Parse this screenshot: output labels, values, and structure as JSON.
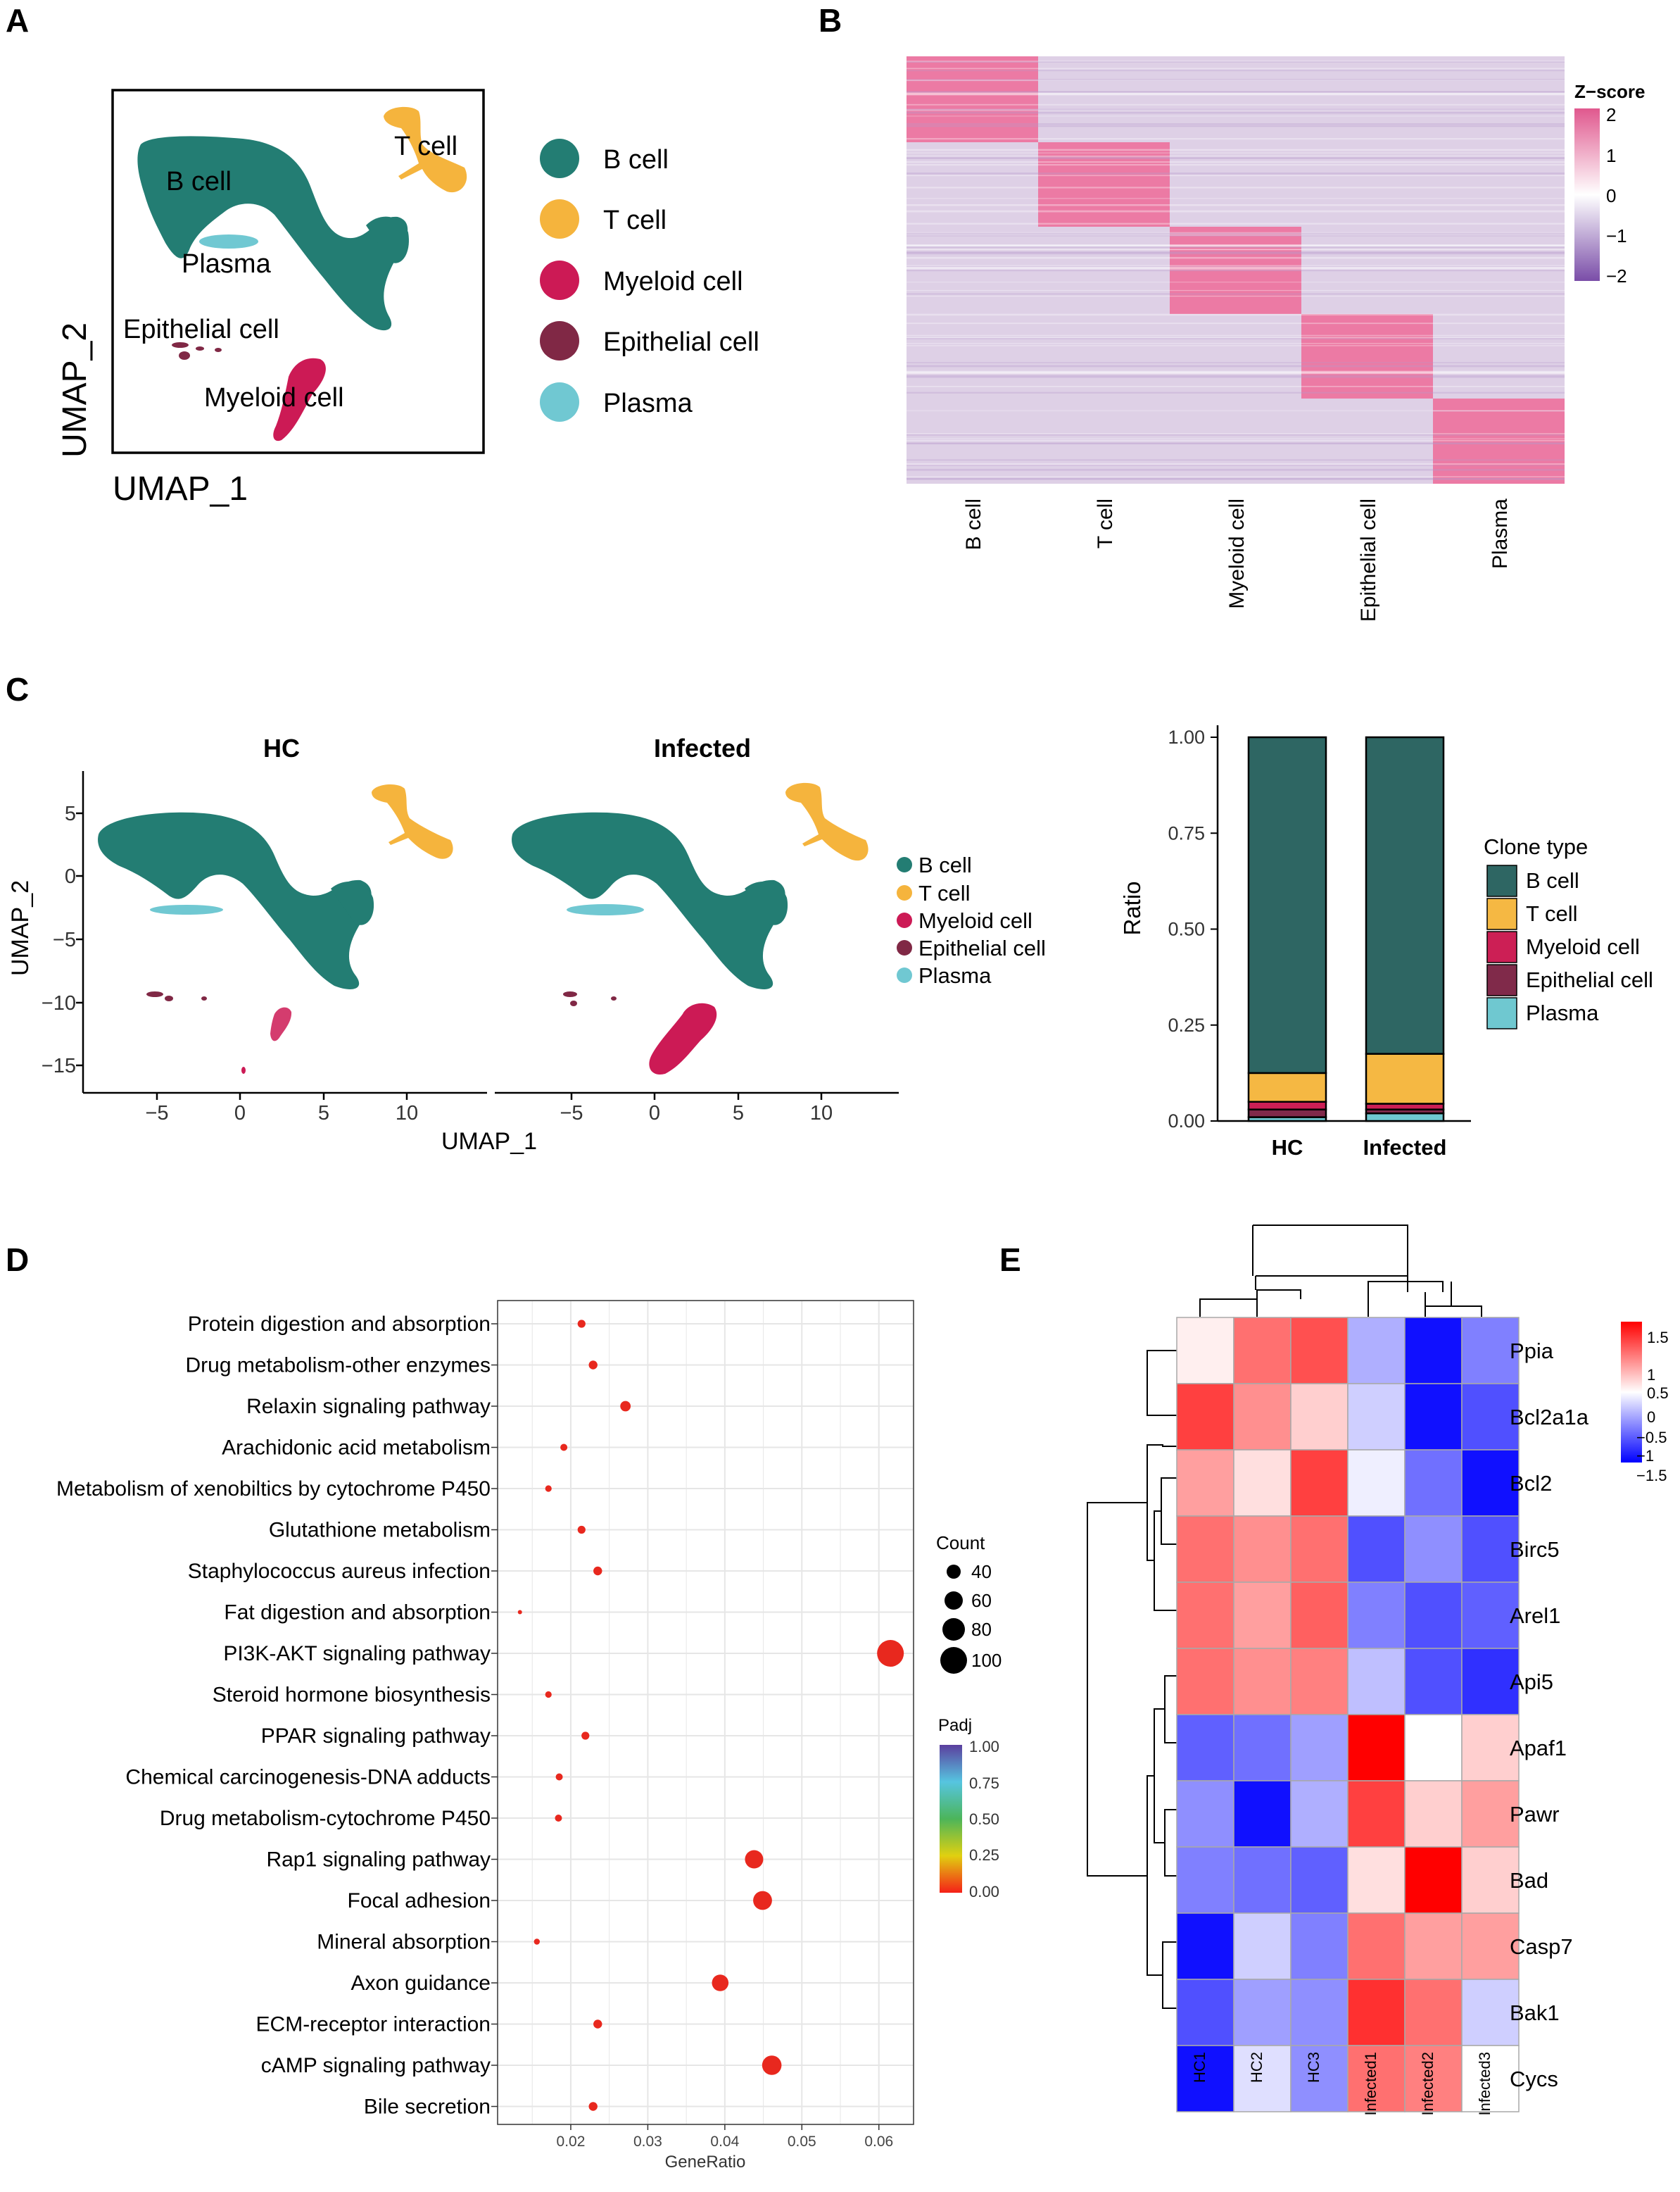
{
  "panels": {
    "a": "A",
    "b": "B",
    "c": "C",
    "d": "D",
    "e": "E"
  },
  "colors": {
    "bcell": "#237D73",
    "tcell": "#F5B43D",
    "myeloid": "#CC1A55",
    "epithelial": "#802845",
    "plasma": "#70C8D2"
  },
  "panel_a": {
    "xlabel": "UMAP_1",
    "ylabel": "UMAP_2",
    "cluster_labels": [
      "B cell",
      "T cell",
      "Plasma",
      "Epithelial cell",
      "Myeloid cell"
    ],
    "legend": [
      "B cell",
      "T cell",
      "Myeloid cell",
      "Epithelial cell",
      "Plasma"
    ]
  },
  "panel_b": {
    "legend_title": "Z−score",
    "legend_ticks": [
      "2",
      "1",
      "0",
      "−1",
      "−2"
    ],
    "columns": [
      "B cell",
      "T cell",
      "Myeloid cell",
      "Epithelial cell",
      "Plasma"
    ]
  },
  "panel_c": {
    "umap_titles": [
      "HC",
      "Infected"
    ],
    "xlabel": "UMAP_1",
    "ylabel": "UMAP_2",
    "xticks": [
      "−5",
      "0",
      "5",
      "10"
    ],
    "yticks": [
      "5",
      "0",
      "−5",
      "−10",
      "−15"
    ],
    "legend": [
      "B cell",
      "T cell",
      "Myeloid cell",
      "Epithelial cell",
      "Plasma"
    ],
    "bar": {
      "ylabel": "Ratio",
      "legend_title": "Clone type",
      "yticks": [
        "1.00",
        "0.75",
        "0.50",
        "0.25",
        "0.00"
      ],
      "categories": [
        "HC",
        "Infected"
      ],
      "legend": [
        "B cell",
        "T cell",
        "Myeloid cell",
        "Epithelial cell",
        "Plasma"
      ]
    }
  },
  "panel_d": {
    "xlabel": "GeneRatio",
    "xticks": [
      "0.02",
      "0.03",
      "0.04",
      "0.05",
      "0.06"
    ],
    "count_title": "Count",
    "count_ticks": [
      "40",
      "60",
      "80",
      "100"
    ],
    "padj_title": "Padj",
    "padj_ticks": [
      "1.00",
      "0.75",
      "0.50",
      "0.25",
      "0.00"
    ]
  },
  "panel_e": {
    "columns": [
      "HC1",
      "HC2",
      "HC3",
      "Infected1",
      "Infected2",
      "Infected3"
    ],
    "legend_ticks": [
      "1.5",
      "1",
      "0.5",
      "0",
      "−0.5",
      "−1",
      "−1.5"
    ]
  },
  "chart_data": [
    {
      "type": "bar",
      "title": "",
      "xlabel": "",
      "ylabel": "Ratio",
      "ylim": [
        0,
        1
      ],
      "categories": [
        "HC",
        "Infected"
      ],
      "series": [
        {
          "name": "Plasma",
          "values": [
            0.01,
            0.02
          ]
        },
        {
          "name": "Epithelial cell",
          "values": [
            0.02,
            0.01
          ]
        },
        {
          "name": "Myeloid cell",
          "values": [
            0.02,
            0.015
          ]
        },
        {
          "name": "T cell",
          "values": [
            0.075,
            0.13
          ]
        },
        {
          "name": "B cell",
          "values": [
            0.875,
            0.825
          ]
        }
      ]
    },
    {
      "type": "scatter",
      "title": "",
      "xlabel": "GeneRatio",
      "ylabel": "",
      "xlim": [
        0.0105,
        0.0645
      ],
      "categories": [
        "Protein digestion and absorption",
        "Drug metabolism-other enzymes",
        "Relaxin signaling pathway",
        "Arachidonic acid metabolism",
        "Metabolism of xenobiltics by cytochrome P450",
        "Glutathione metabolism",
        "Staphylococcus aureus infection",
        "Fat digestion and absorption",
        "PI3K-AKT signaling pathway",
        "Steroid hormone biosynthesis",
        "PPAR signaling pathway",
        "Chemical carcinogenesis-DNA adducts",
        "Drug metabolism-cytochrome P450",
        "Rap1 signaling pathway",
        "Focal adhesion",
        "Mineral absorption",
        "Axon guidance",
        "ECM-receptor interaction",
        "cAMP signaling pathway",
        "Bile secretion"
      ],
      "gene_ratio": [
        0.0214,
        0.0229,
        0.0271,
        0.0191,
        0.0171,
        0.0214,
        0.0235,
        0.0134,
        0.0615,
        0.0171,
        0.0219,
        0.0185,
        0.0184,
        0.0438,
        0.0449,
        0.0156,
        0.0394,
        0.0235,
        0.0461,
        0.0229
      ],
      "count": [
        43,
        46,
        52,
        40,
        38,
        43,
        46,
        30,
        110,
        38,
        43,
        40,
        40,
        80,
        82,
        36,
        74,
        46,
        84,
        46
      ],
      "padj": [
        0.01,
        0.01,
        0.01,
        0.01,
        0.01,
        0.01,
        0.01,
        0.01,
        0.01,
        0.01,
        0.01,
        0.01,
        0.01,
        0.01,
        0.01,
        0.01,
        0.01,
        0.01,
        0.01,
        0.01
      ]
    },
    {
      "type": "heatmap",
      "title": "",
      "rows": [
        "Ppia",
        "Bcl2a1a",
        "Bcl2",
        "Birc5",
        "Arel1",
        "Api5",
        "Apaf1",
        "Pawr",
        "Bad",
        "Casp7",
        "Bak1",
        "Cycs"
      ],
      "columns": [
        "HC1",
        "HC2",
        "HC3",
        "Infected1",
        "Infected2",
        "Infected3"
      ],
      "vmin": -1.6,
      "vmax": 1.6,
      "values": [
        [
          0.1,
          0.9,
          1.1,
          -0.5,
          -1.5,
          -0.8
        ],
        [
          1.2,
          0.7,
          0.3,
          -0.3,
          -1.5,
          -1.1
        ],
        [
          0.6,
          0.2,
          1.2,
          -0.1,
          -0.9,
          -1.5
        ],
        [
          0.9,
          0.7,
          0.9,
          -1.1,
          -0.7,
          -1.1
        ],
        [
          0.9,
          0.6,
          1.0,
          -0.8,
          -1.1,
          -1.0
        ],
        [
          0.9,
          0.7,
          0.8,
          -0.4,
          -1.1,
          -1.3
        ],
        [
          -1.0,
          -0.9,
          -0.6,
          1.6,
          0.0,
          0.3
        ],
        [
          -0.7,
          -1.5,
          -0.5,
          1.2,
          0.3,
          0.6
        ],
        [
          -0.8,
          -0.9,
          -1.0,
          0.2,
          1.6,
          0.3
        ],
        [
          -1.5,
          -0.3,
          -0.8,
          0.9,
          0.6,
          0.6
        ],
        [
          -1.1,
          -0.6,
          -0.7,
          1.3,
          0.9,
          -0.3
        ],
        [
          -1.5,
          -0.2,
          -0.7,
          0.9,
          0.8,
          0.0
        ]
      ]
    }
  ]
}
